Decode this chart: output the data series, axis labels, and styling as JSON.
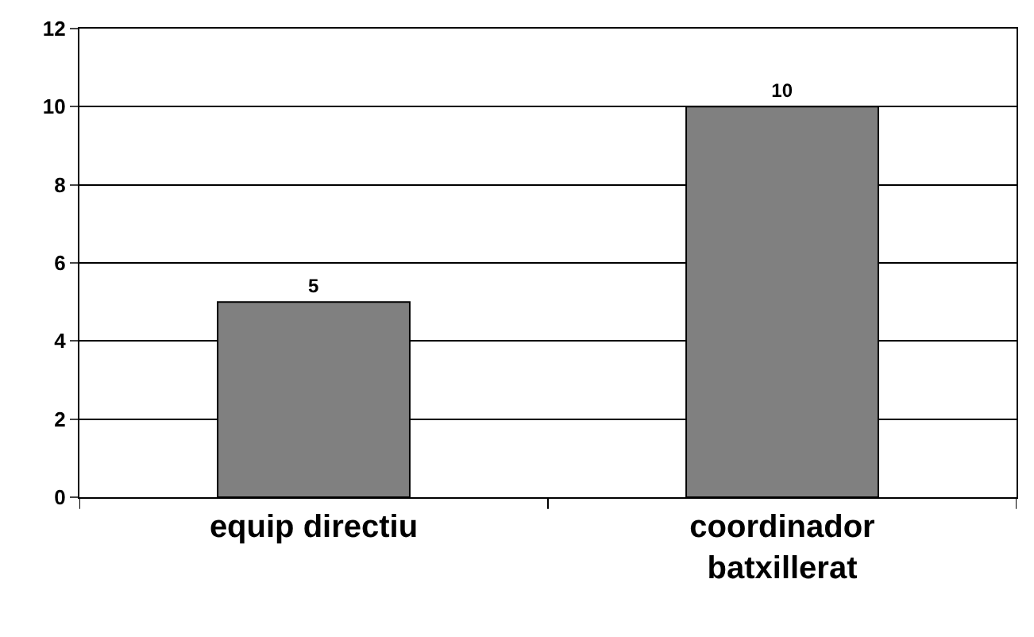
{
  "chart_data": {
    "type": "bar",
    "categories": [
      "equip directiu",
      "coordinador batxillerat"
    ],
    "values": [
      5,
      10
    ],
    "color": "#808080",
    "ylim": [
      0,
      12
    ],
    "yticks": [
      0,
      2,
      4,
      6,
      8,
      10,
      12
    ],
    "grid": "y",
    "data_labels": true,
    "legend": false
  }
}
